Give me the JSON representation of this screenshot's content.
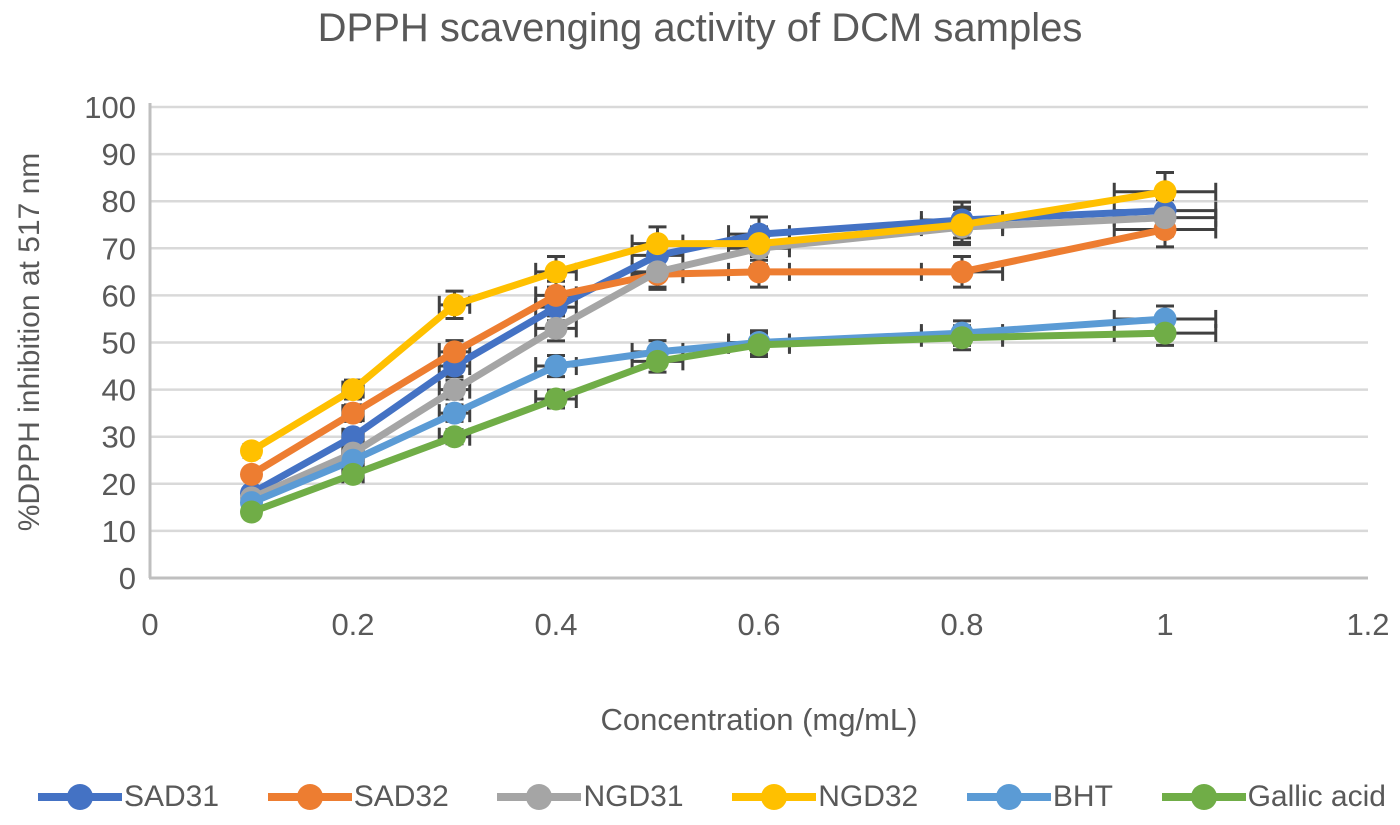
{
  "chart_data": {
    "type": "line",
    "title": "DPPH scavenging activity of DCM samples",
    "xlabel": "Concentration (mg/mL)",
    "ylabel": "%DPPH inhibition at 517 nm",
    "x": [
      0.1,
      0.2,
      0.3,
      0.4,
      0.5,
      0.6,
      0.8,
      1.0
    ],
    "xlim": [
      0,
      1.2
    ],
    "ylim": [
      0,
      100
    ],
    "xtick_step": 0.2,
    "ytick_step": 10,
    "xtick_labels": [
      "0",
      "0.2",
      "0.4",
      "0.6",
      "0.8",
      "1",
      "1.2"
    ],
    "ytick_labels": [
      "0",
      "10",
      "20",
      "30",
      "40",
      "50",
      "60",
      "70",
      "80",
      "90",
      "100"
    ],
    "grid": "horizontal-only",
    "legend_position": "bottom",
    "error_bars": {
      "x_pct": 5,
      "y_pct": 5,
      "caps": true,
      "color": "#404040"
    },
    "series": [
      {
        "name": "SAD31",
        "color": "#4472C4",
        "values": [
          18,
          30,
          45,
          57.5,
          68.5,
          73,
          76,
          78
        ]
      },
      {
        "name": "SAD32",
        "color": "#ED7D31",
        "values": [
          22,
          35,
          48,
          60,
          64.5,
          65,
          65,
          74
        ]
      },
      {
        "name": "NGD31",
        "color": "#A5A5A5",
        "values": [
          17,
          26.5,
          40,
          53,
          65,
          70,
          74.5,
          76.5
        ]
      },
      {
        "name": "NGD32",
        "color": "#FFC000",
        "values": [
          27,
          40,
          58,
          65,
          71,
          71,
          75,
          82
        ]
      },
      {
        "name": "BHT",
        "color": "#5B9BD5",
        "values": [
          16,
          25,
          35,
          45,
          48,
          50,
          52,
          55
        ]
      },
      {
        "name": "Gallic acid",
        "color": "#70AD47",
        "values": [
          14,
          22,
          30,
          38,
          46,
          49.5,
          51,
          52
        ]
      }
    ],
    "colors": {
      "grid": "#D9D9D9",
      "axis": "#BFBFBF",
      "text": "#595959",
      "error_bar": "#404040"
    }
  }
}
